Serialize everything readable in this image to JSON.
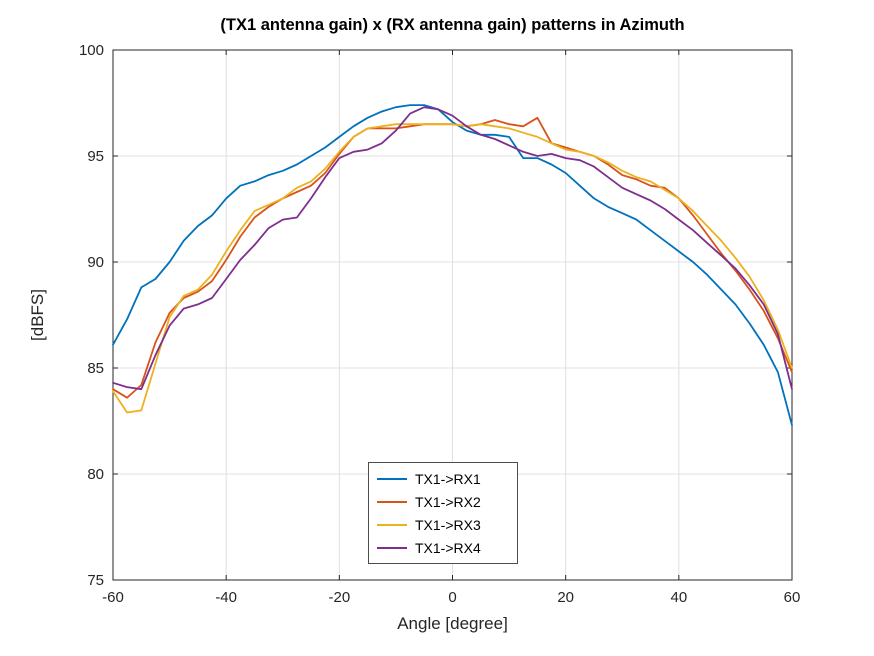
{
  "chart_data": {
    "type": "line",
    "title": "(TX1 antenna gain) x (RX antenna gain) patterns in Azimuth",
    "xlabel": "Angle [degree]",
    "ylabel": "[dBFS]",
    "xlim": [
      -60,
      60
    ],
    "ylim": [
      75,
      100
    ],
    "xticks": [
      -60,
      -40,
      -20,
      0,
      20,
      40,
      60
    ],
    "yticks": [
      75,
      80,
      85,
      90,
      95,
      100
    ],
    "grid": true,
    "legend_position": "inside-bottom-center",
    "axis_color": "#262626",
    "grid_color": "#e0e0e0",
    "x": [
      -60,
      -57.5,
      -55,
      -52.5,
      -50,
      -47.5,
      -45,
      -42.5,
      -40,
      -37.5,
      -35,
      -32.5,
      -30,
      -27.5,
      -25,
      -22.5,
      -20,
      -17.5,
      -15,
      -12.5,
      -10,
      -7.5,
      -5,
      -2.5,
      0,
      2.5,
      5,
      7.5,
      10,
      12.5,
      15,
      17.5,
      20,
      22.5,
      25,
      27.5,
      30,
      32.5,
      35,
      37.5,
      40,
      42.5,
      45,
      47.5,
      50,
      52.5,
      55,
      57.5,
      60
    ],
    "series": [
      {
        "name": "TX1->RX1",
        "color": "#0072BD",
        "values": [
          86.1,
          87.3,
          88.8,
          89.2,
          90.0,
          91.0,
          91.7,
          92.2,
          93.0,
          93.6,
          93.8,
          94.1,
          94.3,
          94.6,
          95.0,
          95.4,
          95.9,
          96.4,
          96.8,
          97.1,
          97.3,
          97.4,
          97.4,
          97.2,
          96.6,
          96.2,
          96.0,
          96.0,
          95.9,
          94.9,
          94.9,
          94.6,
          94.2,
          93.6,
          93.0,
          92.6,
          92.3,
          92.0,
          91.5,
          91.0,
          90.5,
          90.0,
          89.4,
          88.7,
          88.0,
          87.1,
          86.1,
          84.8,
          82.3
        ]
      },
      {
        "name": "TX1->RX2",
        "color": "#D95319",
        "values": [
          84.0,
          83.6,
          84.2,
          86.2,
          87.6,
          88.3,
          88.6,
          89.1,
          90.1,
          91.2,
          92.1,
          92.6,
          93.0,
          93.3,
          93.6,
          94.2,
          95.1,
          95.9,
          96.3,
          96.3,
          96.3,
          96.4,
          96.5,
          96.5,
          96.5,
          96.4,
          96.5,
          96.7,
          96.5,
          96.4,
          96.8,
          95.6,
          95.4,
          95.2,
          95.0,
          94.6,
          94.1,
          93.9,
          93.6,
          93.5,
          93.0,
          92.2,
          91.3,
          90.4,
          89.6,
          88.7,
          87.7,
          86.4,
          84.8
        ]
      },
      {
        "name": "TX1->RX3",
        "color": "#EDB120",
        "values": [
          83.9,
          82.9,
          83.0,
          85.2,
          87.4,
          88.4,
          88.7,
          89.4,
          90.5,
          91.5,
          92.4,
          92.7,
          93.0,
          93.5,
          93.8,
          94.4,
          95.2,
          95.9,
          96.3,
          96.4,
          96.5,
          96.5,
          96.5,
          96.5,
          96.5,
          96.4,
          96.5,
          96.4,
          96.3,
          96.1,
          95.9,
          95.6,
          95.3,
          95.2,
          95.0,
          94.7,
          94.3,
          94.0,
          93.8,
          93.4,
          93.0,
          92.4,
          91.7,
          91.0,
          90.2,
          89.3,
          88.2,
          86.8,
          85.0
        ]
      },
      {
        "name": "TX1->RX4",
        "color": "#7E2F8E",
        "values": [
          84.3,
          84.1,
          84.0,
          85.6,
          87.0,
          87.8,
          88.0,
          88.3,
          89.2,
          90.1,
          90.8,
          91.6,
          92.0,
          92.1,
          93.0,
          94.0,
          94.9,
          95.2,
          95.3,
          95.6,
          96.2,
          97.0,
          97.3,
          97.2,
          96.9,
          96.4,
          96.0,
          95.8,
          95.5,
          95.2,
          95.0,
          95.1,
          94.9,
          94.8,
          94.5,
          94.0,
          93.5,
          93.2,
          92.9,
          92.5,
          92.0,
          91.5,
          90.9,
          90.3,
          89.7,
          88.9,
          88.0,
          86.6,
          84.0
        ]
      }
    ]
  }
}
